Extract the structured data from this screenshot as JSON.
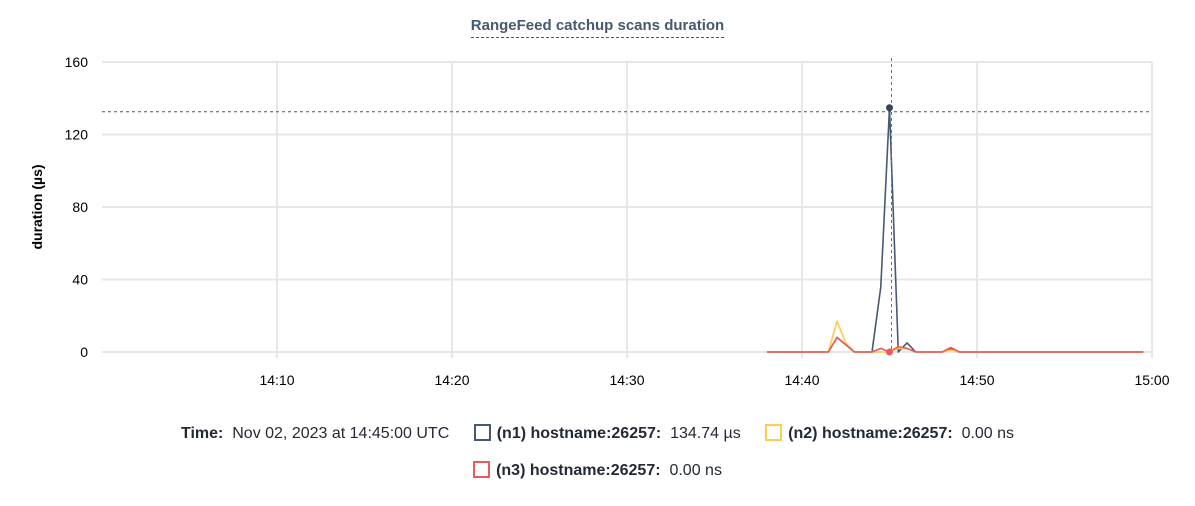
{
  "chart_data": {
    "type": "line",
    "title": "RangeFeed catchup scans duration",
    "ylabel": "duration (µs)",
    "xlabel": "",
    "ylim": [
      0,
      160
    ],
    "yticks": [
      "0",
      "40",
      "80",
      "120",
      "160"
    ],
    "xlim": [
      "14:00",
      "15:00"
    ],
    "xticks": [
      "14:10",
      "14:20",
      "14:30",
      "14:40",
      "14:50",
      "15:00"
    ],
    "grid": true,
    "x": [
      "14:38:00",
      "14:38:30",
      "14:39:00",
      "14:39:30",
      "14:40:00",
      "14:40:30",
      "14:41:00",
      "14:41:30",
      "14:42:00",
      "14:42:30",
      "14:43:00",
      "14:43:30",
      "14:44:00",
      "14:44:30",
      "14:45:00",
      "14:45:30",
      "14:46:00",
      "14:46:30",
      "14:47:00",
      "14:47:30",
      "14:48:00",
      "14:48:30",
      "14:49:00",
      "14:49:30",
      "14:50:00",
      "14:50:30",
      "14:51:00",
      "14:51:30",
      "14:52:00",
      "14:52:30",
      "14:53:00",
      "14:53:30",
      "14:54:00",
      "14:54:30",
      "14:55:00",
      "14:55:30",
      "14:56:00",
      "14:56:30",
      "14:57:00",
      "14:57:30",
      "14:58:00",
      "14:58:30",
      "14:59:00",
      "14:59:30"
    ],
    "series": [
      {
        "name": "(n1) hostname:26257",
        "color": "#475872",
        "values": [
          0,
          0,
          0,
          0,
          0,
          0,
          0,
          0,
          8,
          4,
          0,
          0,
          0,
          36,
          134.74,
          0,
          5,
          0,
          0,
          0,
          0,
          1.5,
          0,
          0,
          0,
          0,
          0,
          0,
          0,
          0,
          0,
          0,
          0,
          0,
          0,
          0,
          0,
          0,
          0,
          0,
          0,
          0,
          0,
          0
        ]
      },
      {
        "name": "(n2) hostname:26257",
        "color": "#ffcd4d",
        "values": [
          0,
          0,
          0,
          0,
          0,
          0,
          0,
          0,
          17,
          5,
          0,
          0,
          0,
          0,
          0,
          2,
          2,
          0,
          0,
          0,
          0,
          1,
          0,
          0,
          0,
          0,
          0,
          0,
          0,
          0,
          0,
          0,
          0,
          0,
          0,
          0,
          0,
          0,
          0,
          0,
          0,
          0,
          0,
          0
        ]
      },
      {
        "name": "(n3) hostname:26257",
        "color": "#ee5a5a",
        "values": [
          0,
          0,
          0,
          0,
          0,
          0,
          0,
          0,
          8,
          4,
          0,
          0,
          0,
          2,
          0,
          3,
          2,
          0,
          0,
          0,
          0,
          2.5,
          0,
          0,
          0,
          0,
          0,
          0,
          0,
          0,
          0,
          0,
          0,
          0,
          0,
          0,
          0,
          0,
          0,
          0,
          0,
          0,
          0,
          0
        ]
      }
    ],
    "hover": {
      "x": "14:45:00",
      "y": 134.74
    }
  },
  "tooltip": {
    "time_label": "Time:",
    "time_value": "Nov 02, 2023 at 14:45:00 UTC",
    "entries": [
      {
        "label": "(n1) hostname:26257:",
        "value": "134.74 µs",
        "color": "#475872"
      },
      {
        "label": "(n2) hostname:26257:",
        "value": "0.00 ns",
        "color": "#ffcd4d"
      },
      {
        "label": "(n3) hostname:26257:",
        "value": "0.00 ns",
        "color": "#ee5a5a"
      }
    ]
  }
}
